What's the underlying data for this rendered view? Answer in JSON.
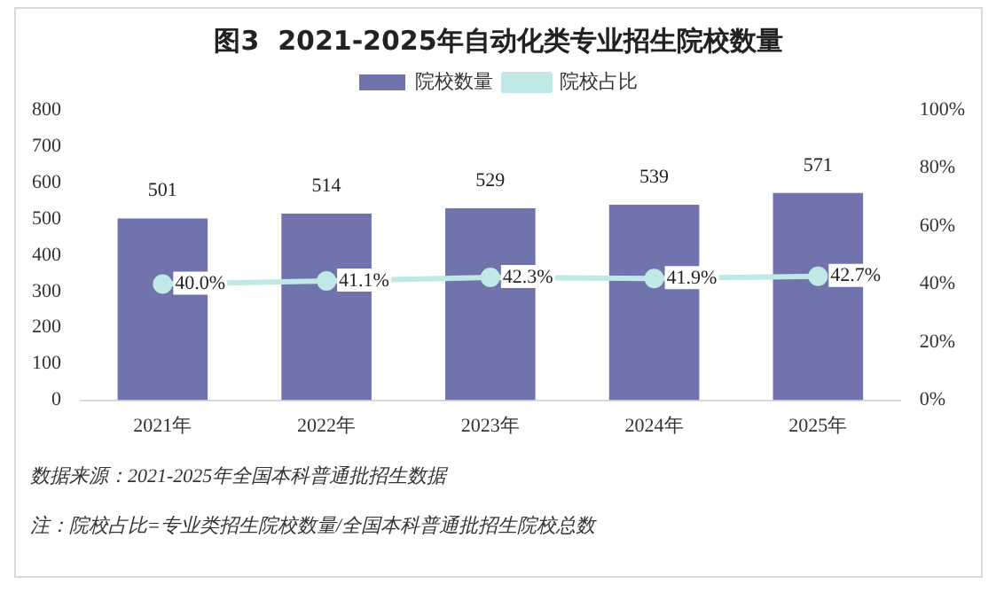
{
  "chart_data": {
    "type": "bar",
    "title": "图3  2021-2025年自动化类专业招生院校数量",
    "categories": [
      "2021年",
      "2022年",
      "2023年",
      "2024年",
      "2025年"
    ],
    "series": [
      {
        "name": "院校数量",
        "color": "#7173ad",
        "values": [
          501,
          514,
          529,
          539,
          571
        ],
        "value_labels": [
          "501",
          "514",
          "529",
          "539",
          "571"
        ]
      },
      {
        "name": "院校占比",
        "type": "line",
        "axis": "y2",
        "color": "#bfe8e6",
        "values": [
          40.0,
          41.1,
          42.3,
          41.9,
          42.7
        ],
        "value_labels": [
          "40.0%",
          "41.1%",
          "42.3%",
          "41.9%",
          "42.7%"
        ]
      }
    ],
    "ylim": [
      0,
      800
    ],
    "yticks": [
      0,
      100,
      200,
      300,
      400,
      500,
      600,
      700,
      800
    ],
    "y2lim": [
      0,
      100
    ],
    "y2ticks": [
      {
        "value": 0,
        "label": "0%"
      },
      {
        "value": 20,
        "label": "20%"
      },
      {
        "value": 40,
        "label": "40%"
      },
      {
        "value": 60,
        "label": "60%"
      },
      {
        "value": 80,
        "label": "80%"
      },
      {
        "value": 100,
        "label": "100%"
      }
    ],
    "grid": false,
    "legend": "top",
    "marker": "circle",
    "annotations": [
      "数据来源：2021-2025年全国本科普通批招生数据",
      "注：院校占比=专业类招生院校数量/全国本科普通批招生院校总数"
    ]
  }
}
